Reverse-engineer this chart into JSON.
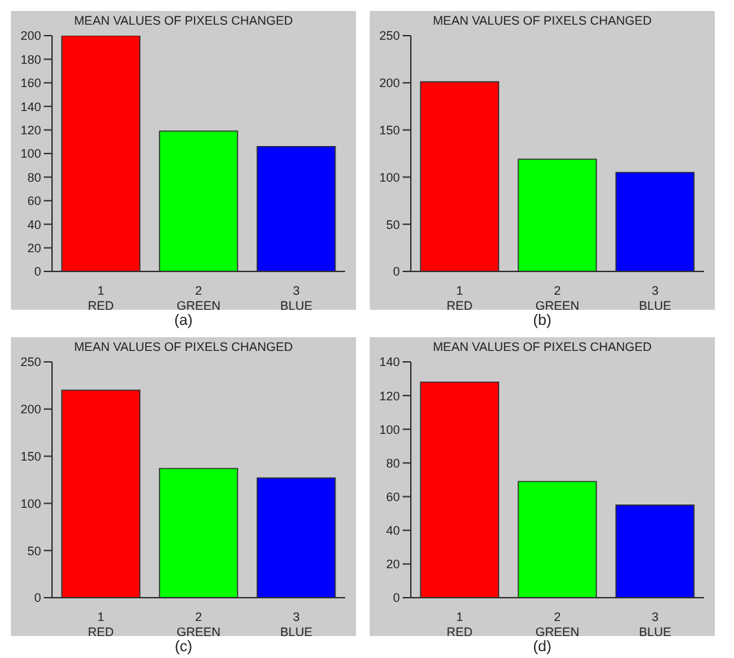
{
  "chart_data": [
    {
      "type": "bar",
      "title": "MEAN VALUES OF PIXELS CHANGED",
      "categories": [
        "1\nRED",
        "2\nGREEN",
        "3\nBLUE"
      ],
      "values": [
        200,
        119,
        106
      ],
      "colors": [
        "#ff0000",
        "#00ff00",
        "#0000ff"
      ],
      "ylim": [
        0,
        200
      ],
      "yticks": [
        0,
        20,
        40,
        60,
        80,
        100,
        120,
        140,
        160,
        180,
        200
      ],
      "annotations": [
        "(a)"
      ]
    },
    {
      "type": "bar",
      "title": "MEAN VALUES OF PIXELS CHANGED",
      "categories": [
        "1\nRED",
        "2\nGREEN",
        "3\nBLUE"
      ],
      "values": [
        201,
        119,
        105
      ],
      "colors": [
        "#ff0000",
        "#00ff00",
        "#0000ff"
      ],
      "ylim": [
        0,
        250
      ],
      "yticks": [
        0,
        50,
        100,
        150,
        200,
        250
      ],
      "annotations": [
        "(b)"
      ]
    },
    {
      "type": "bar",
      "title": "MEAN VALUES OF PIXELS CHANGED",
      "categories": [
        "1\nRED",
        "2\nGREEN",
        "3\nBLUE"
      ],
      "values": [
        220,
        137,
        127
      ],
      "colors": [
        "#ff0000",
        "#00ff00",
        "#0000ff"
      ],
      "ylim": [
        0,
        250
      ],
      "yticks": [
        0,
        50,
        100,
        150,
        200,
        250
      ],
      "annotations": [
        "(c)"
      ]
    },
    {
      "type": "bar",
      "title": "MEAN VALUES OF PIXELS CHANGED",
      "categories": [
        "1\nRED",
        "2\nGREEN",
        "3\nBLUE"
      ],
      "values": [
        128,
        69,
        55
      ],
      "colors": [
        "#ff0000",
        "#00ff00",
        "#0000ff"
      ],
      "ylim": [
        0,
        140
      ],
      "yticks": [
        0,
        20,
        40,
        60,
        80,
        100,
        120,
        140
      ],
      "annotations": [
        "(d)"
      ]
    }
  ]
}
